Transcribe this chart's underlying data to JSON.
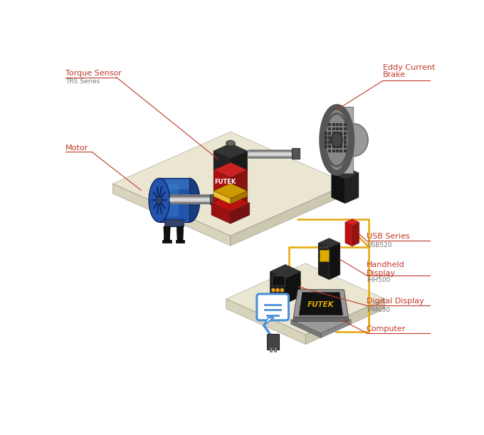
{
  "bg_color": "#ffffff",
  "labels": {
    "torque_sensor": "Torque Sensor",
    "trs_series": "TRS Series",
    "motor": "Motor",
    "eddy_current_brake": "Eddy Current\nBrake",
    "usb_series": "USB Series",
    "usb520": "USB520",
    "handheld_display": "Handheld\nDisplay",
    "ihh500": "IHH500",
    "digital_display": "Digital Display",
    "ipm650": "IPM650",
    "computer": "Computer"
  },
  "label_color": "#c0392b",
  "subtitle_color": "#777777",
  "line_color": "#c0392b",
  "wire_yellow": "#e8b020",
  "wire_blue": "#4a90d9",
  "platform_top": "#eae6d2",
  "platform_front": "#d8d3bb",
  "platform_side": "#ccc8b0",
  "motor_blue": "#2255aa",
  "motor_blue2": "#1a3d7c",
  "motor_blue3": "#3377cc",
  "motor_dark": "#0d2266",
  "sensor_red": "#cc2222",
  "sensor_dark_red": "#881111",
  "sensor_black": "#222222",
  "sensor_yellow": "#f0c030",
  "brake_gray": "#aaaaaa",
  "brake_mid": "#888888",
  "brake_dark": "#555555",
  "brake_black": "#222222",
  "device_dark": "#222222",
  "usb_red": "#cc1111",
  "hh_dark": "#1a1a1a",
  "hh_yellow": "#ddaa00",
  "dd_dark": "#2a2a2a",
  "dd_orange": "#e8a020",
  "laptop_gray": "#999999",
  "laptop_dark": "#777777",
  "laptop_screen": "#111111",
  "laptop_logo": "#ddaa00",
  "bubble_blue": "#4a90d9",
  "plug_gray": "#555555"
}
